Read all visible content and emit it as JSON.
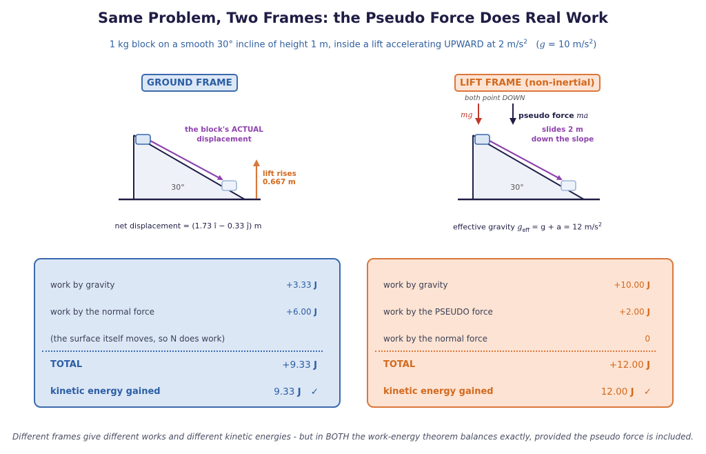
{
  "title": "Same Problem, Two Frames: the Pseudo Force Does Real Work",
  "subtitle": {
    "main": "1 kg block on a smooth 30° incline of height 1 m, inside a lift accelerating UPWARD at 2 m/s",
    "sup": "2",
    "g_open": "(",
    "g_symbol": "g",
    "g_rest": " = 10 m/s",
    "g_sup": "2",
    "g_close": ")"
  },
  "ground_frame": {
    "tag": "GROUND FRAME",
    "angle_label": "30°",
    "displacement_label_line1": "the block's ACTUAL",
    "displacement_label_line2": "displacement",
    "lift_rise_line1": "lift rises",
    "lift_rise_line2": "0.667 m",
    "caption": "net displacement = (1.73 î − 0.33 ĵ) m",
    "panel": {
      "rows": [
        {
          "label": "work by gravity",
          "value": "+3.33",
          "unit": "J"
        },
        {
          "label": "work by the normal force",
          "value": "+6.00",
          "unit": "J"
        },
        {
          "label": "(the surface itself moves, so N does work)",
          "value": "",
          "unit": ""
        }
      ],
      "total_label": "TOTAL",
      "total_value": "+9.33",
      "total_unit": "J",
      "ke_label": "kinetic energy gained",
      "ke_value": "9.33",
      "ke_unit": "J",
      "check": "✓"
    }
  },
  "lift_frame": {
    "tag": "LIFT FRAME (non-inertial)",
    "angle_label": "30°",
    "both_down": "both point DOWN",
    "mg_label": "mg",
    "pseudo_label": "pseudo force",
    "pseudo_symbol": "ma",
    "slides_line1": "slides 2 m",
    "slides_line2": "down the slope",
    "caption_prefix": "effective gravity ",
    "caption_symbol": "g",
    "caption_sub": "eff",
    "caption_rest": " = g + a = 12 m/s",
    "caption_sup": "2",
    "panel": {
      "rows": [
        {
          "label": "work by gravity",
          "value": "+10.00",
          "unit": "J"
        },
        {
          "label": "work by the PSEUDO force",
          "value": "+2.00",
          "unit": "J"
        },
        {
          "label": "work by the normal force",
          "value": "0",
          "unit": ""
        }
      ],
      "total_label": "TOTAL",
      "total_value": "+12.00",
      "total_unit": "J",
      "ke_label": "kinetic energy gained",
      "ke_value": "12.00",
      "ke_unit": "J",
      "check": "✓"
    }
  },
  "footer": "Different frames give different works and different kinetic energies - but in BOTH the work-energy theorem balances exactly, provided the pseudo force is included.",
  "colors": {
    "navy": "#1f1d45",
    "blue": "#2b5ea4",
    "orange": "#d2691e",
    "purple": "#8e44ad",
    "red": "#c0392b"
  }
}
